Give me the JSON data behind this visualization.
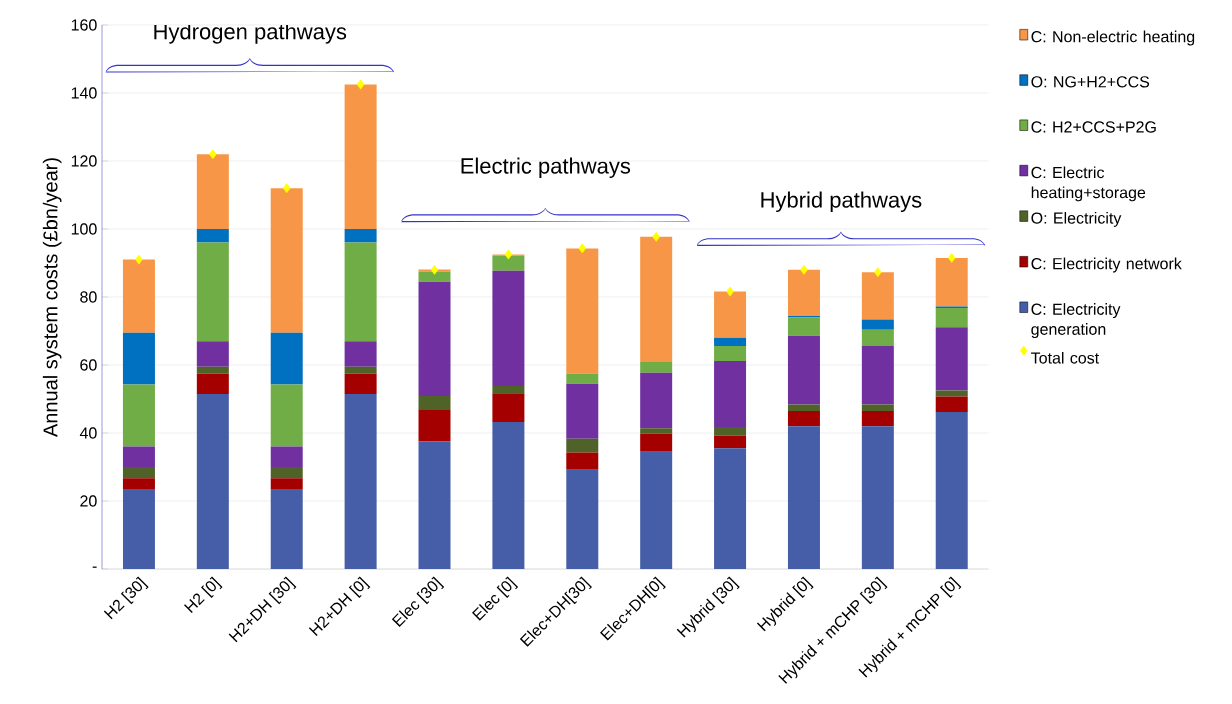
{
  "chart_data": {
    "type": "bar",
    "stacked": true,
    "ylabel": "Annual system costs (£bn/year)",
    "categories": [
      "H2 [30]",
      "H2 [0]",
      "H2+DH [30]",
      "H2+DH [0]",
      "Elec [30]",
      "Elec [0]",
      "Elec+DH[30]",
      "Elec+DH[0]",
      "Hybrid [30]",
      "Hybrid [0]",
      "Hybrid + mCHP [30]",
      "Hybrid + mCHP [0]"
    ],
    "series": [
      {
        "name": "C: Electricity generation",
        "color": "#465ea8",
        "values": [
          23.5,
          51.5,
          23.5,
          51.5,
          37.5,
          43.2,
          29.2,
          34.5,
          35.5,
          42,
          42,
          46.2
        ]
      },
      {
        "name": "C: Electricity network",
        "color": "#a50000",
        "values": [
          3.2,
          6,
          3.2,
          6,
          9.3,
          8.5,
          5.1,
          5.3,
          3.7,
          4.5,
          4.5,
          4.5
        ]
      },
      {
        "name": "O: Electricity",
        "color": "#4f6228",
        "values": [
          3.3,
          2,
          3.3,
          2,
          4.1,
          2.1,
          4,
          1.6,
          2.6,
          1.9,
          1.9,
          1.8
        ]
      },
      {
        "name": "C: Electric heating+storage",
        "color": "#7030a0",
        "values": [
          6,
          7.5,
          6,
          7.5,
          33.6,
          33.9,
          16.2,
          16.3,
          19.4,
          20.2,
          17.2,
          18.6
        ]
      },
      {
        "name": "C: H2+CCS+P2G",
        "color": "#70ad47",
        "values": [
          18.3,
          29,
          18.3,
          29,
          3,
          4.4,
          3,
          3.2,
          4.4,
          5.4,
          4.8,
          5.7
        ]
      },
      {
        "name": "O: NG+H2+CCS",
        "color": "#0070c0",
        "values": [
          15.2,
          4,
          15.2,
          4,
          0,
          0,
          0,
          0,
          2.4,
          0.4,
          3,
          0.4
        ]
      },
      {
        "name": "C: Non-electric heating",
        "color": "#f79646",
        "values": [
          21.5,
          22,
          42.5,
          42.5,
          0.6,
          0.4,
          36.8,
          36.8,
          13.6,
          13.6,
          13.9,
          14.3
        ]
      },
      {
        "name": "Total cost",
        "type": "scatter",
        "marker": "diamond",
        "color": "#ffff00",
        "x": [
          "H2 [30]",
          "H2 [0]",
          "H2+DH [30]",
          "H2+DH [0]",
          "Elec [30]",
          "Elec [0]",
          "Elec+DH[30]",
          "Elec+DH[0]",
          "Hybrid [30]",
          "Hybrid [0]",
          "Hybrid + mCHP [30]",
          "Hybrid + mCHP [0]"
        ],
        "values": [
          91,
          122,
          112,
          142.5,
          88,
          92.5,
          94.3,
          97.7,
          81.6,
          88,
          87.3,
          91.5
        ]
      }
    ],
    "ylim": [
      0,
      160
    ],
    "yticks": [
      {
        "value": 0,
        "label": "-"
      },
      20,
      40,
      60,
      80,
      100,
      120,
      140,
      160
    ],
    "grid": "y",
    "legend": "right",
    "annotations": [
      "Hydrogen pathways",
      "Electric pathways",
      "Hybrid pathways"
    ]
  }
}
